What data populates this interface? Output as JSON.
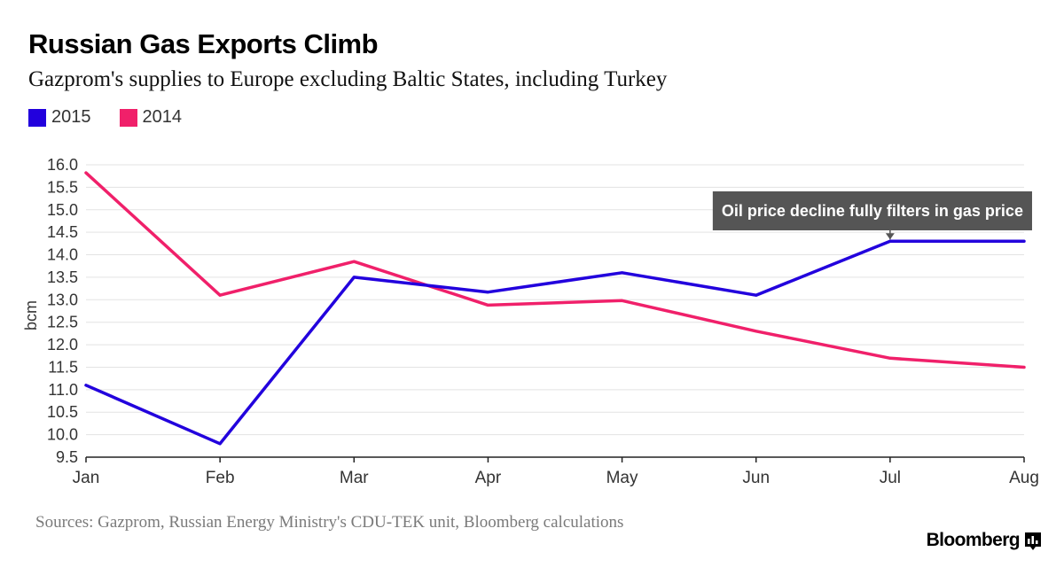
{
  "header": {
    "title": "Russian Gas Exports Climb",
    "subtitle": "Gazprom's supplies to Europe excluding Baltic States, including Turkey"
  },
  "legend": [
    {
      "label": "2015",
      "color": "#2200dd"
    },
    {
      "label": "2014",
      "color": "#f0206a"
    }
  ],
  "footer": {
    "source": "Sources: Gazprom, Russian Energy Ministry's CDU-TEK unit, Bloomberg calculations",
    "brand": "Bloomberg",
    "brand_icon": "bloomberg-chart-icon"
  },
  "chart_data": {
    "type": "line",
    "title": "Russian Gas Exports Climb",
    "subtitle": "Gazprom's supplies to Europe excluding Baltic States, including Turkey",
    "xlabel": "",
    "ylabel": "bcm",
    "categories": [
      "Jan",
      "Feb",
      "Mar",
      "Apr",
      "May",
      "Jun",
      "Jul",
      "Aug"
    ],
    "ylim": [
      9.5,
      16.0
    ],
    "yticks": [
      "9.5",
      "10.0",
      "10.5",
      "11.0",
      "11.5",
      "12.0",
      "12.5",
      "13.0",
      "13.5",
      "14.0",
      "14.5",
      "15.0",
      "15.5",
      "16.0"
    ],
    "grid": true,
    "legend_position": "top-left",
    "series": [
      {
        "name": "2015",
        "color": "#2200dd",
        "values": [
          11.1,
          9.8,
          13.5,
          13.17,
          13.6,
          13.1,
          14.3,
          14.3
        ]
      },
      {
        "name": "2014",
        "color": "#f0206a",
        "values": [
          15.82,
          13.1,
          13.85,
          12.88,
          12.98,
          12.3,
          11.7,
          11.5
        ]
      }
    ],
    "annotations": [
      {
        "text": "Oil price decline fully filters in gas price",
        "category": "Jul",
        "series": "2015",
        "value": 14.3
      }
    ]
  }
}
